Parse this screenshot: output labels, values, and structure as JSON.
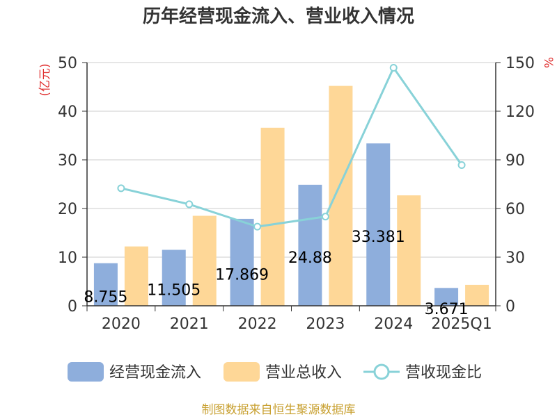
{
  "chart_data": {
    "type": "bar",
    "title": "历年经营现金流入、营业收入情况",
    "categories": [
      "2020",
      "2021",
      "2022",
      "2023",
      "2024",
      "2025Q1"
    ],
    "left_axis": {
      "unit": "(亿元)",
      "ticks": [
        "0",
        "10",
        "20",
        "30",
        "40",
        "50"
      ],
      "ylim": [
        0,
        50
      ]
    },
    "right_axis": {
      "unit": "%",
      "ticks": [
        "0",
        "30",
        "60",
        "90",
        "120",
        "150"
      ],
      "ylim": [
        0,
        150
      ]
    },
    "series": [
      {
        "name": "经营现金流入",
        "kind": "bar",
        "axis": "left",
        "color": "#8eaedc",
        "values": [
          8.755,
          11.505,
          17.869,
          24.88,
          33.381,
          3.671
        ],
        "labels": [
          "8.755",
          "11.505",
          "17.869",
          "24.88",
          "33.381",
          "3.671"
        ]
      },
      {
        "name": "营业总收入",
        "kind": "bar",
        "axis": "left",
        "color": "#fed797",
        "values": [
          12.2,
          18.5,
          36.6,
          45.2,
          22.7,
          4.3
        ]
      },
      {
        "name": "营收现金比",
        "kind": "line",
        "axis": "right",
        "color": "#88d2d8",
        "values": [
          72.5,
          62.6,
          48.8,
          55.0,
          146.8,
          86.8
        ]
      }
    ],
    "grid": true,
    "legend_position": "bottom"
  },
  "colors": {
    "unit_label": "#e03030",
    "source": "#c8a030",
    "axis": "#333333",
    "grid": "#cccccc"
  },
  "source_text": "制图数据来自恒生聚源数据库"
}
